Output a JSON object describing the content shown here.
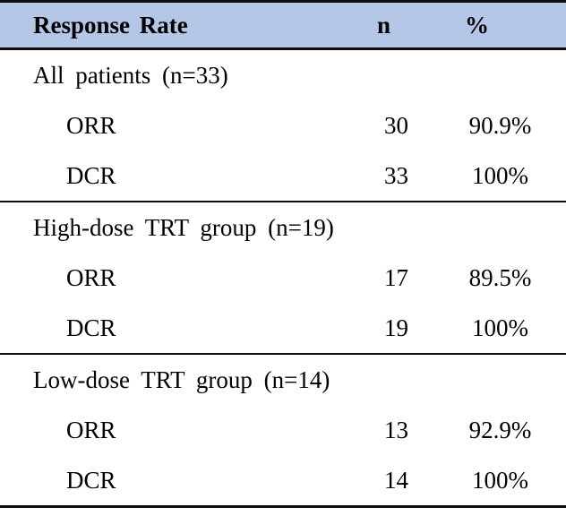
{
  "table": {
    "title_column": "Response Rate",
    "columns": {
      "label": "Response Rate",
      "n": "n",
      "pct": "%"
    },
    "sections": [
      {
        "group": "All patients (n=33)",
        "rows": [
          {
            "label": "ORR",
            "n": "30",
            "pct": "90.9%"
          },
          {
            "label": "DCR",
            "n": "33",
            "pct": "100%"
          }
        ]
      },
      {
        "group": "High-dose TRT group (n=19)",
        "rows": [
          {
            "label": "ORR",
            "n": "17",
            "pct": "89.5%"
          },
          {
            "label": "DCR",
            "n": "19",
            "pct": "100%"
          }
        ]
      },
      {
        "group": "Low-dose TRT group (n=14)",
        "rows": [
          {
            "label": "ORR",
            "n": "13",
            "pct": "92.9%"
          },
          {
            "label": "DCR",
            "n": "14",
            "pct": "100%"
          }
        ]
      }
    ],
    "colors": {
      "header_bg": "#b4c7e7",
      "rule": "#0d0d0d",
      "text": "#000000"
    }
  },
  "chart_data": {
    "type": "table",
    "title": "Response Rate",
    "column_headers": [
      "Response Rate",
      "n",
      "%"
    ],
    "groups": [
      {
        "name": "All patients (n=33)",
        "rows": [
          [
            "ORR",
            30,
            "90.9%"
          ],
          [
            "DCR",
            33,
            "100%"
          ]
        ]
      },
      {
        "name": "High-dose TRT group (n=19)",
        "rows": [
          [
            "ORR",
            17,
            "89.5%"
          ],
          [
            "DCR",
            19,
            "100%"
          ]
        ]
      },
      {
        "name": "Low-dose TRT group (n=14)",
        "rows": [
          [
            "ORR",
            13,
            "92.9%"
          ],
          [
            "DCR",
            14,
            "100%"
          ]
        ]
      }
    ]
  }
}
